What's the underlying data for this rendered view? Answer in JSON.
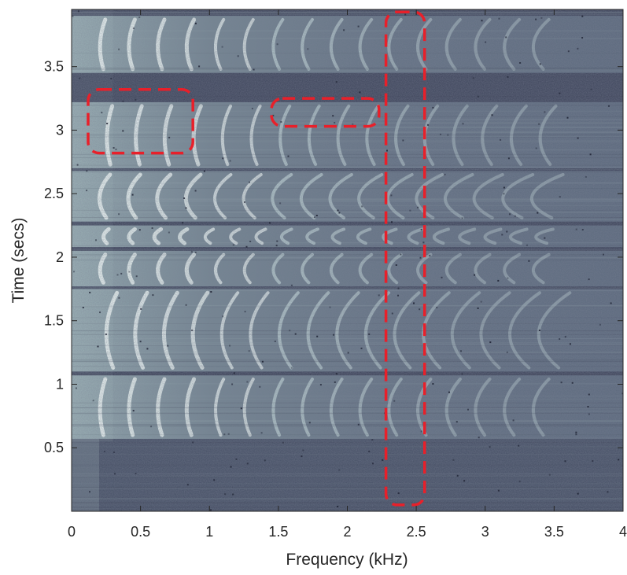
{
  "chart_data": {
    "type": "heatmap",
    "title": "",
    "xlabel": "Frequency (kHz)",
    "ylabel": "Time (secs)",
    "xlim": [
      0,
      4
    ],
    "ylim": [
      0,
      3.95
    ],
    "x_ticks": [
      0,
      0.5,
      1,
      1.5,
      2,
      2.5,
      3,
      3.5,
      4
    ],
    "x_tick_labels": [
      "0",
      "0.5",
      "1",
      "1.5",
      "2",
      "2.5",
      "3",
      "3.5",
      "4"
    ],
    "y_ticks": [
      0.5,
      1,
      1.5,
      2,
      2.5,
      3,
      3.5
    ],
    "y_tick_labels": [
      "0.5",
      "1",
      "1.5",
      "2",
      "2.5",
      "3",
      "3.5"
    ],
    "colormap": [
      "#3a3f55",
      "#5c6a7e",
      "#8ea0aa",
      "#c8dcdc",
      "#eef7f4"
    ],
    "speech_segments": [
      {
        "t0": 0.57,
        "t1": 1.07
      },
      {
        "t0": 1.1,
        "t1": 1.75
      },
      {
        "t0": 1.77,
        "t1": 2.05
      },
      {
        "t0": 2.08,
        "t1": 2.25
      },
      {
        "t0": 2.28,
        "t1": 2.68
      },
      {
        "t0": 2.7,
        "t1": 3.22
      },
      {
        "t0": 3.45,
        "t1": 3.9
      }
    ],
    "highlight_regions": [
      {
        "x0": 0.12,
        "x1": 0.88,
        "y0": 2.82,
        "y1": 3.32
      },
      {
        "x0": 1.45,
        "x1": 2.23,
        "y0": 3.03,
        "y1": 3.25
      },
      {
        "x0": 2.28,
        "x1": 2.56,
        "y0": 0.05,
        "y1": 3.93
      }
    ],
    "highlight_color": "#e8202a"
  }
}
